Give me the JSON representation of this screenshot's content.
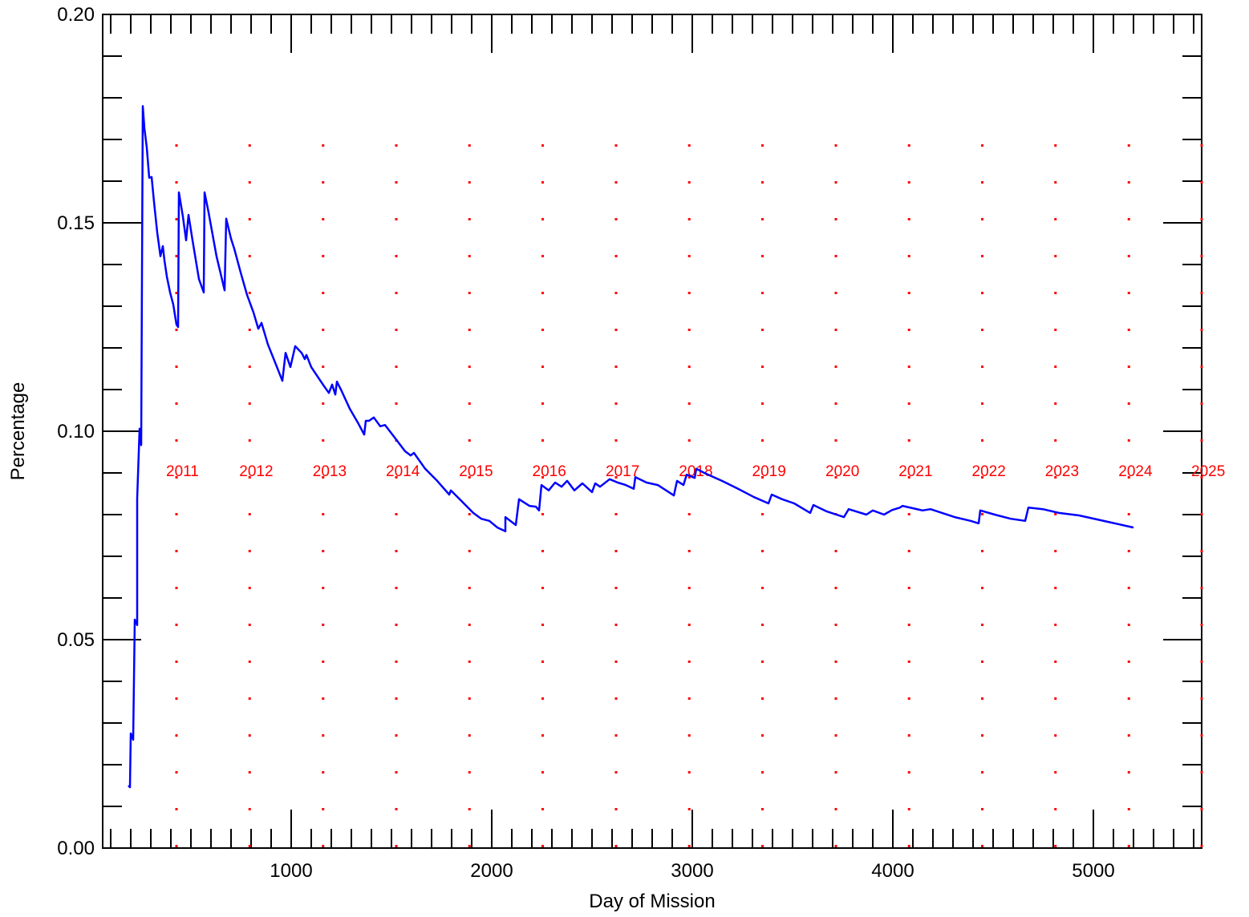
{
  "chart_data": {
    "type": "line",
    "xlabel": "Day of Mission",
    "ylabel": "Percentage",
    "xlim": [
      60,
      5540
    ],
    "ylim": [
      0,
      0.2
    ],
    "xticks": [
      1000,
      2000,
      3000,
      4000,
      5000
    ],
    "yticks": [
      {
        "value": 0,
        "label": "0.00"
      },
      0.05,
      {
        "value": 0.1,
        "label": "0.10"
      },
      0.15,
      {
        "value": 0.2,
        "label": "0.20"
      }
    ],
    "x_minor_step": 100,
    "y_minor_step": 0.01,
    "year_markers": [
      {
        "label": "2011",
        "x": 428
      },
      {
        "label": "2012",
        "x": 793
      },
      {
        "label": "2013",
        "x": 1159
      },
      {
        "label": "2014",
        "x": 1524
      },
      {
        "label": "2015",
        "x": 1889
      },
      {
        "label": "2016",
        "x": 2254
      },
      {
        "label": "2017",
        "x": 2620
      },
      {
        "label": "2018",
        "x": 2985
      },
      {
        "label": "2019",
        "x": 3350
      },
      {
        "label": "2020",
        "x": 3716
      },
      {
        "label": "2021",
        "x": 4081
      },
      {
        "label": "2022",
        "x": 4446
      },
      {
        "label": "2023",
        "x": 4811
      },
      {
        "label": "2024",
        "x": 5177
      },
      {
        "label": "2025",
        "x": 5540
      }
    ],
    "marker_color": "#ff0000",
    "series": [
      {
        "color": "#0000ff",
        "x": [
          188,
          196,
          200,
          212,
          220,
          232,
          232,
          244,
          252,
          260,
          268,
          280,
          292,
          304,
          316,
          332,
          348,
          360,
          368,
          380,
          396,
          412,
          428,
          436,
          440,
          460,
          476,
          488,
          508,
          540,
          564,
          568,
          588,
          628,
          668,
          676,
          700,
          716,
          748,
          780,
          812,
          836,
          852,
          884,
          924,
          956,
          972,
          996,
          1020,
          1052,
          1068,
          1076,
          1100,
          1132,
          1164,
          1188,
          1204,
          1220,
          1228,
          1252,
          1292,
          1332,
          1364,
          1372,
          1388,
          1412,
          1444,
          1468,
          1508,
          1568,
          1596,
          1612,
          1668,
          1728,
          1788,
          1796,
          1848,
          1908,
          1948,
          1988,
          2028,
          2068,
          2068,
          2120,
          2136,
          2188,
          2220,
          2236,
          2248,
          2284,
          2316,
          2348,
          2376,
          2412,
          2452,
          2500,
          2516,
          2540,
          2588,
          2628,
          2668,
          2708,
          2716,
          2772,
          2828,
          2908,
          2924,
          2956,
          2972,
          3012,
          3020,
          3060,
          3148,
          3228,
          3308,
          3380,
          3396,
          3448,
          3508,
          3588,
          3604,
          3668,
          3756,
          3780,
          3868,
          3900,
          3956,
          3996,
          4036,
          4048,
          4148,
          4188,
          4308,
          4388,
          4428,
          4436,
          4508,
          4588,
          4660,
          4676,
          4748,
          4828,
          4928,
          5088,
          5200
        ],
        "values": [
          0.015,
          0.0146,
          0.0275,
          0.026,
          0.0548,
          0.0535,
          0.0838,
          0.1006,
          0.0967,
          0.178,
          0.1727,
          0.168,
          0.1608,
          0.161,
          0.155,
          0.1477,
          0.142,
          0.1444,
          0.141,
          0.1371,
          0.1333,
          0.1304,
          0.1256,
          0.125,
          0.1573,
          0.1515,
          0.1458,
          0.1519,
          0.1458,
          0.1365,
          0.1333,
          0.1573,
          0.1525,
          0.1419,
          0.1338,
          0.151,
          0.1462,
          0.1438,
          0.1381,
          0.1327,
          0.1285,
          0.1246,
          0.126,
          0.1208,
          0.116,
          0.1121,
          0.1188,
          0.1154,
          0.1204,
          0.1188,
          0.1173,
          0.1183,
          0.1154,
          0.1131,
          0.1108,
          0.1092,
          0.1112,
          0.1088,
          0.1119,
          0.1096,
          0.1054,
          0.1021,
          0.0992,
          0.1025,
          0.1025,
          0.1033,
          0.1012,
          0.1015,
          0.099,
          0.0952,
          0.0942,
          0.0948,
          0.091,
          0.0881,
          0.0848,
          0.0858,
          0.0833,
          0.0804,
          0.079,
          0.0785,
          0.0769,
          0.076,
          0.0794,
          0.0775,
          0.0837,
          0.0821,
          0.0819,
          0.081,
          0.0871,
          0.0858,
          0.0877,
          0.0867,
          0.0881,
          0.0858,
          0.0875,
          0.0854,
          0.0875,
          0.0867,
          0.0885,
          0.0877,
          0.0871,
          0.0862,
          0.089,
          0.0877,
          0.0871,
          0.0846,
          0.0881,
          0.0871,
          0.0896,
          0.0888,
          0.091,
          0.09,
          0.0881,
          0.0862,
          0.0842,
          0.0827,
          0.0848,
          0.0837,
          0.0827,
          0.0804,
          0.0823,
          0.0808,
          0.0794,
          0.0813,
          0.08,
          0.081,
          0.08,
          0.0811,
          0.0817,
          0.0821,
          0.081,
          0.0813,
          0.0794,
          0.0785,
          0.0779,
          0.081,
          0.08,
          0.079,
          0.0785,
          0.0817,
          0.0813,
          0.0804,
          0.0798,
          0.0781,
          0.0769
        ]
      }
    ]
  }
}
